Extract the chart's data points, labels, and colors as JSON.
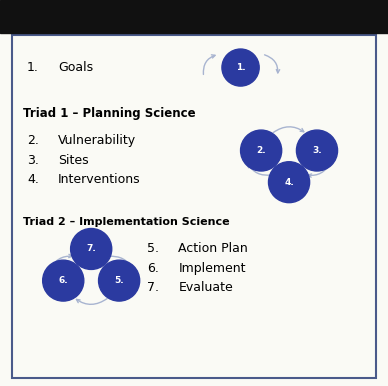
{
  "background_color": "#FAFAF5",
  "border_color": "#4A5A8A",
  "circle_color": "#2B3AA0",
  "circle_text_color": "#FFFFFF",
  "arrow_color": "#A8B4D0",
  "text_color": "#000000",
  "title_color": "#000000",
  "item1_label": "Goals",
  "triad1_title": "Triad 1 – Planning Science",
  "triad1_items": [
    "Vulnerability",
    "Sites",
    "Interventions"
  ],
  "triad1_numbers": [
    "2.",
    "3.",
    "4."
  ],
  "triad2_title": "Triad 2 – Implementation Science",
  "triad2_items": [
    "Action Plan",
    "Implement",
    "Evaluate"
  ],
  "triad2_numbers": [
    "5.",
    "6.",
    "7."
  ],
  "circle_labels": [
    "1.",
    "2.",
    "3.",
    "4.",
    "5.",
    "6.",
    "7."
  ],
  "figsize": [
    3.88,
    3.86
  ],
  "dpi": 100
}
